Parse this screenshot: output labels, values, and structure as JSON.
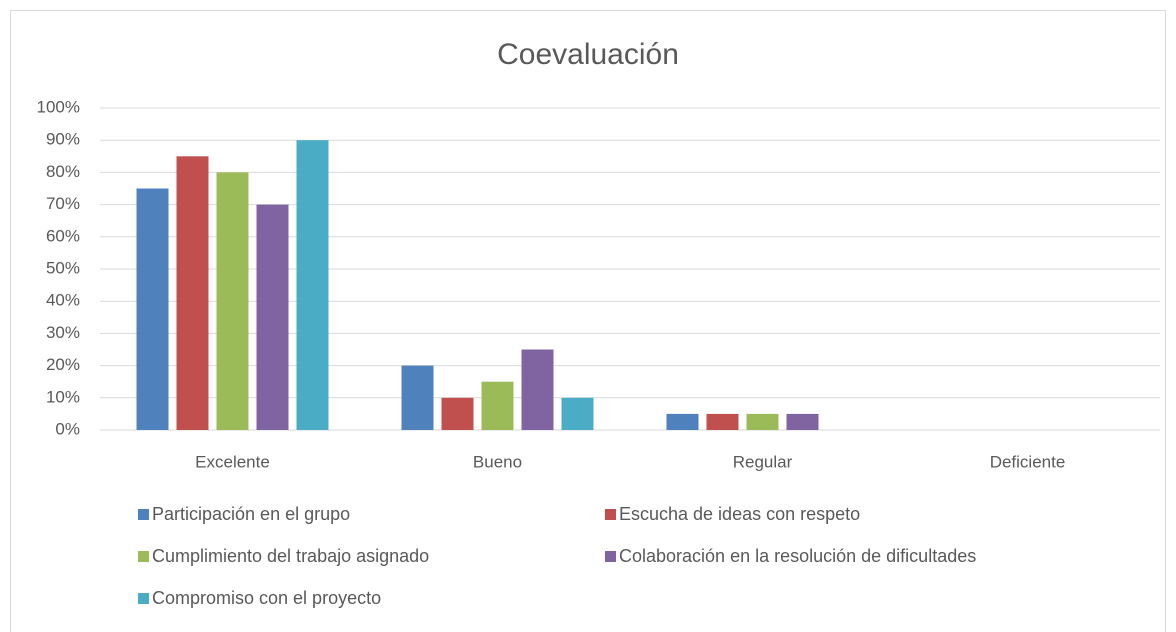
{
  "chart_data": {
    "type": "bar",
    "title": "Coevaluación",
    "categories": [
      "Excelente",
      "Bueno",
      "Regular",
      "Deficiente"
    ],
    "series": [
      {
        "name": "Participación en el grupo",
        "color": "#4f81bd",
        "values": [
          75,
          20,
          5,
          0
        ]
      },
      {
        "name": "Escucha de ideas con respeto",
        "color": "#c0504d",
        "values": [
          85,
          10,
          5,
          0
        ]
      },
      {
        "name": "Cumplimiento del trabajo asignado",
        "color": "#9bbb59",
        "values": [
          80,
          15,
          5,
          0
        ]
      },
      {
        "name": "Colaboración en la resolución de dificultades",
        "color": "#8064a2",
        "values": [
          70,
          25,
          5,
          0
        ]
      },
      {
        "name": "Compromiso con el proyecto",
        "color": "#4bacc6",
        "values": [
          90,
          10,
          0,
          0
        ]
      }
    ],
    "ylim": [
      0,
      100
    ],
    "yticks": [
      {
        "value": 0,
        "label": "0%"
      },
      {
        "value": 10,
        "label": "10%"
      },
      {
        "value": 20,
        "label": "20%"
      },
      {
        "value": 30,
        "label": "30%"
      },
      {
        "value": 40,
        "label": "40%"
      },
      {
        "value": 50,
        "label": "50%"
      },
      {
        "value": 60,
        "label": "60%"
      },
      {
        "value": 70,
        "label": "70%"
      },
      {
        "value": 80,
        "label": "80%"
      },
      {
        "value": 90,
        "label": "90%"
      },
      {
        "value": 100,
        "label": "100%"
      }
    ],
    "grid": true,
    "legend": "bottom"
  }
}
